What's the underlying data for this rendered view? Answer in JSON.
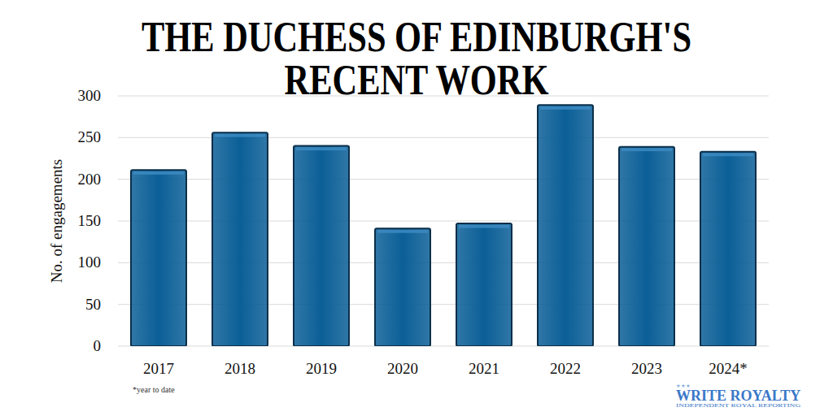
{
  "chart_data": {
    "type": "bar",
    "title": "THE DUCHESS OF EDINBURGH'S RECENT WORK",
    "ylabel": "No. of engagements",
    "categories": [
      "2017",
      "2018",
      "2019",
      "2020",
      "2021",
      "2022",
      "2023",
      "2024*"
    ],
    "values": [
      211,
      256,
      240,
      141,
      147,
      289,
      239,
      233
    ],
    "color": "#0b5f97",
    "ylim": [
      0,
      300
    ],
    "yticks": [
      0,
      50,
      100,
      150,
      200,
      250,
      300
    ],
    "grid": true,
    "annotations": [
      "*year to date",
      "WRITE ROYALTY",
      "INDEPENDENT ROYAL REPORTING"
    ]
  }
}
